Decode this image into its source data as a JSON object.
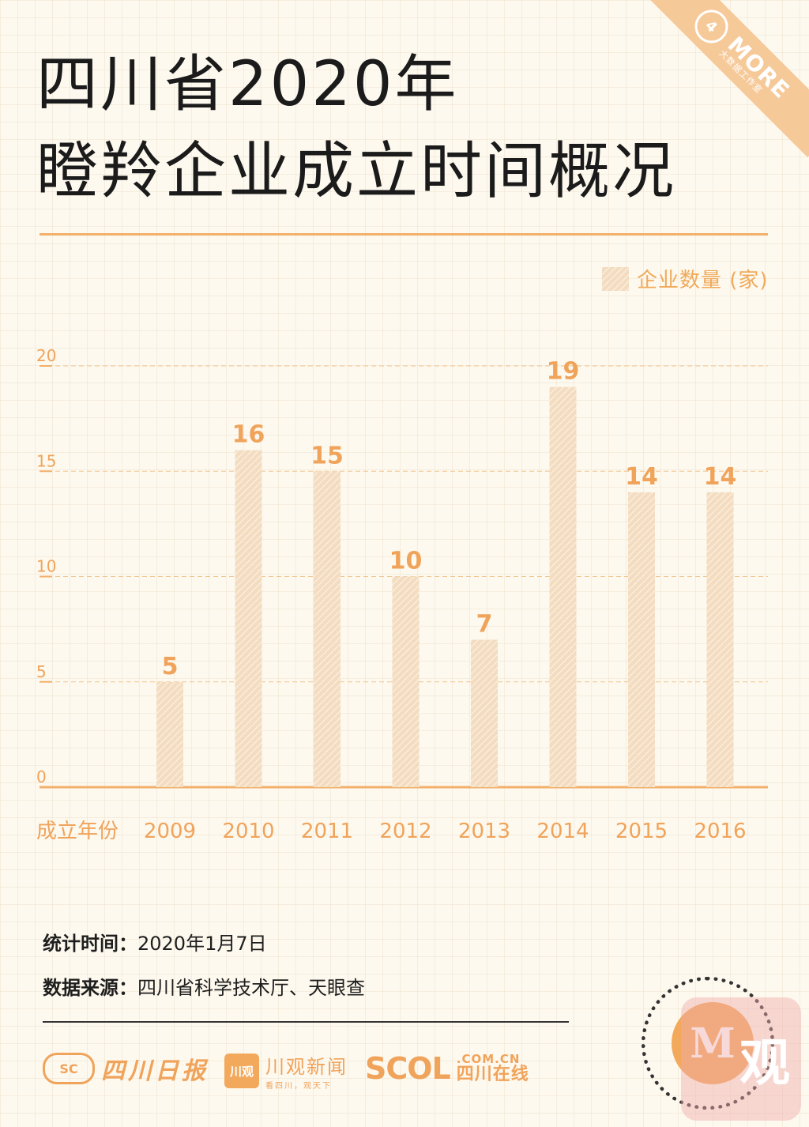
{
  "title_line1": "四川省2020年",
  "title_line2": "瞪羚企业成立时间概况",
  "brand_ribbon": {
    "main": "MORE",
    "sub": "大数据工作室",
    "mark": "4"
  },
  "legend": {
    "label": "企业数量 (家)"
  },
  "chart_data": {
    "type": "bar",
    "xlabel": "成立年份",
    "ylabel": "",
    "categories": [
      "2009",
      "2010",
      "2011",
      "2012",
      "2013",
      "2014",
      "2015",
      "2016"
    ],
    "series": [
      {
        "name": "企业数量 (家)",
        "values": [
          5,
          16,
          15,
          10,
          7,
          19,
          14,
          14
        ]
      }
    ],
    "ylim": [
      0,
      20
    ],
    "yticks": [
      0,
      5,
      10,
      15,
      20
    ],
    "grid": true,
    "legend_position": "top-right",
    "colors": {
      "bar": "#f3dcc0",
      "bar_stripe": "#fbf1e2",
      "label": "#f0a35a",
      "axis": "#f2b06a"
    }
  },
  "info": {
    "time_label": "统计时间：",
    "time_value": "2020年1月7日",
    "source_label": "数据来源：",
    "source_value": "四川省科学技术厅、天眼查"
  },
  "footer": {
    "brand1_icon": "SC",
    "brand1_text": "四川日报",
    "brand2_badge": "川观",
    "brand2_text": "川观新闻",
    "brand2_sub": "看四川，观天下",
    "brand3_big": "SCOL",
    "brand3_small": ".COM.CN",
    "brand3_cn": "四川在线",
    "app_char": "观",
    "qr_center_char": "M"
  }
}
